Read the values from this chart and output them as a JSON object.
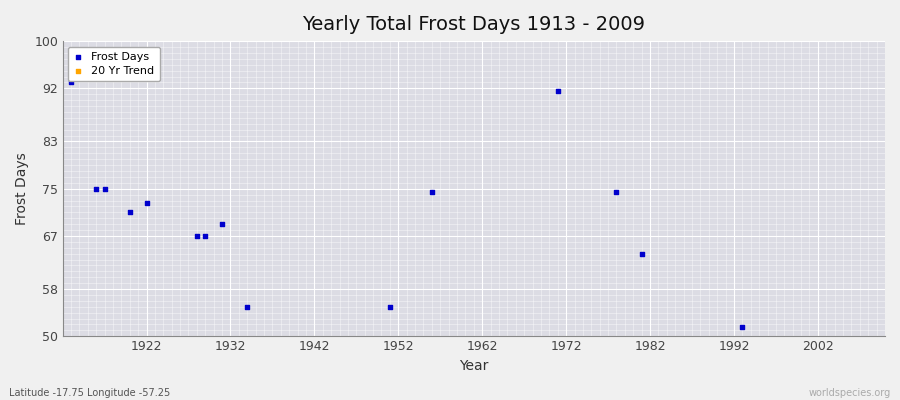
{
  "title": "Yearly Total Frost Days 1913 - 2009",
  "xlabel": "Year",
  "ylabel": "Frost Days",
  "subtitle_lat": "Latitude -17.75 Longitude -57.25",
  "watermark": "worldspecies.org",
  "xlim": [
    1912,
    2010
  ],
  "ylim": [
    50,
    100
  ],
  "yticks": [
    50,
    58,
    67,
    75,
    83,
    92,
    100
  ],
  "xticks": [
    1922,
    1932,
    1942,
    1952,
    1962,
    1972,
    1982,
    1992,
    2002
  ],
  "figure_bg_color": "#f0f0f0",
  "plot_bg_color": "#dcdce4",
  "grid_color": "#ffffff",
  "frost_days_color": "#0000cc",
  "trend_color": "#ffa500",
  "data_points": [
    [
      1913,
      93.0
    ],
    [
      1916,
      75.0
    ],
    [
      1917,
      75.0
    ],
    [
      1920,
      71.0
    ],
    [
      1922,
      72.5
    ],
    [
      1928,
      67.0
    ],
    [
      1929,
      67.0
    ],
    [
      1931,
      69.0
    ],
    [
      1934,
      55.0
    ],
    [
      1951,
      55.0
    ],
    [
      1956,
      74.5
    ],
    [
      1971,
      91.5
    ],
    [
      1978,
      74.5
    ],
    [
      1981,
      64.0
    ],
    [
      1993,
      51.5
    ]
  ],
  "minor_xtick_interval": 1,
  "major_grid_alpha": 1.0,
  "minor_grid_alpha": 1.0
}
